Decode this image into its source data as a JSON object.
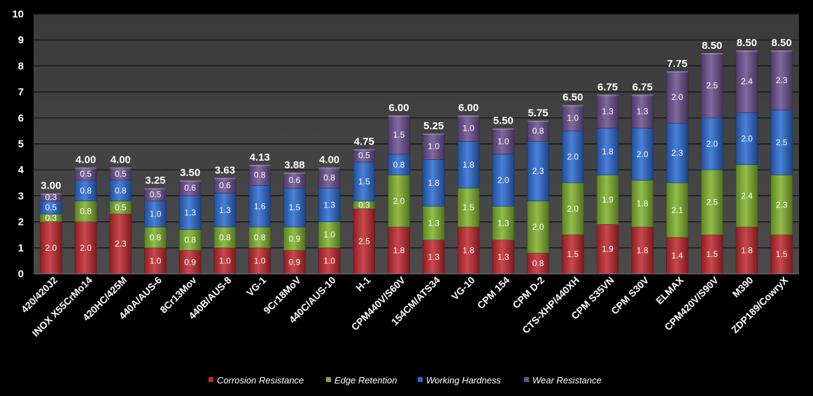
{
  "chart_data": {
    "type": "bar",
    "stacked": true,
    "title": "",
    "xlabel": "",
    "ylabel": "",
    "ylim": [
      0,
      10
    ],
    "yticks": [
      "0",
      "1",
      "2",
      "3",
      "4",
      "5",
      "6",
      "7",
      "8",
      "9",
      "10"
    ],
    "grid": true,
    "legend_position": "bottom",
    "categories": [
      "420/420J2",
      "INOX X55CrMo14",
      "420HC/425M",
      "440A/AUS-6",
      "8Cr13Mov",
      "440B/AUS-8",
      "VG-1",
      "9Cr18MoV",
      "440C/AUS-10",
      "H-1",
      "CPM440V/S60V",
      "154CM/ATS34",
      "VG-10",
      "CPM 154",
      "CPM D-2",
      "CTS-XHP/440XH",
      "CPM S35VN",
      "CPM S30V",
      "ELMAX",
      "CPM420V/S90V",
      "M390",
      "ZDP189/CowryX"
    ],
    "series": [
      {
        "name": "Corrosion Resistance",
        "color": "#c0282d",
        "values": [
          2.0,
          2.0,
          2.3,
          1.0,
          0.9,
          1.0,
          1.0,
          0.9,
          1.0,
          2.5,
          1.8,
          1.3,
          1.8,
          1.3,
          0.8,
          1.5,
          1.9,
          1.8,
          1.4,
          1.5,
          1.8,
          1.5
        ]
      },
      {
        "name": "Edge Retention",
        "color": "#7fb12c",
        "values": [
          0.3,
          0.8,
          0.5,
          0.8,
          0.8,
          0.8,
          0.8,
          0.9,
          1.0,
          0.3,
          2.0,
          1.3,
          1.5,
          1.3,
          2.0,
          2.0,
          1.9,
          1.8,
          2.1,
          2.5,
          2.4,
          2.3
        ]
      },
      {
        "name": "Working Hardness",
        "color": "#2a6ad0",
        "values": [
          0.5,
          0.8,
          0.8,
          1.0,
          1.3,
          1.3,
          1.6,
          1.5,
          1.3,
          1.5,
          0.8,
          1.8,
          1.8,
          2.0,
          2.3,
          2.0,
          1.8,
          2.0,
          2.3,
          2.0,
          2.0,
          2.5
        ]
      },
      {
        "name": "Wear Resistance",
        "color": "#6b4f8f",
        "values": [
          0.3,
          0.5,
          0.5,
          0.5,
          0.6,
          0.6,
          0.8,
          0.6,
          0.8,
          0.5,
          1.5,
          1.0,
          1.0,
          1.0,
          0.8,
          1.0,
          1.3,
          1.3,
          2.0,
          2.5,
          2.4,
          2.3
        ]
      }
    ],
    "totals": [
      "3.00",
      "4.00",
      "4.00",
      "3.25",
      "3.50",
      "3.63",
      "4.13",
      "3.88",
      "4.00",
      "4.75",
      "6.00",
      "5.25",
      "6.00",
      "5.50",
      "5.75",
      "6.50",
      "6.75",
      "6.75",
      "7.75",
      "8.50",
      "8.50",
      "8.50"
    ]
  }
}
